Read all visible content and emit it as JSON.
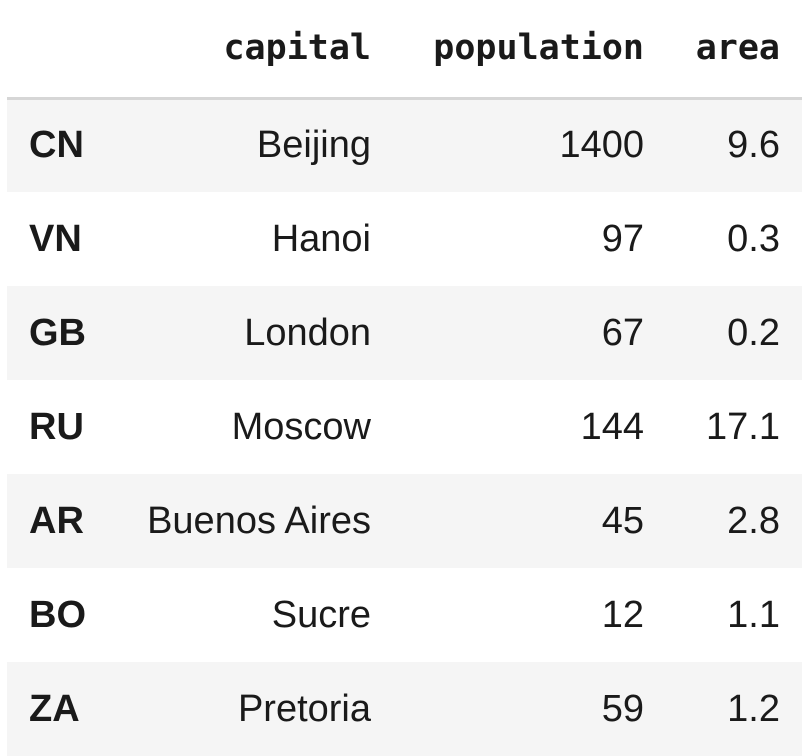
{
  "table": {
    "columns": [
      "capital",
      "population",
      "area"
    ],
    "rows": [
      {
        "index": "CN",
        "capital": "Beijing",
        "population": "1400",
        "area": "9.6"
      },
      {
        "index": "VN",
        "capital": "Hanoi",
        "population": "97",
        "area": "0.3"
      },
      {
        "index": "GB",
        "capital": "London",
        "population": "67",
        "area": "0.2"
      },
      {
        "index": "RU",
        "capital": "Moscow",
        "population": "144",
        "area": "17.1"
      },
      {
        "index": "AR",
        "capital": "Buenos Aires",
        "population": "45",
        "area": "2.8"
      },
      {
        "index": "BO",
        "capital": "Sucre",
        "population": "12",
        "area": "1.1"
      },
      {
        "index": "ZA",
        "capital": "Pretoria",
        "population": "59",
        "area": "1.2"
      }
    ]
  }
}
